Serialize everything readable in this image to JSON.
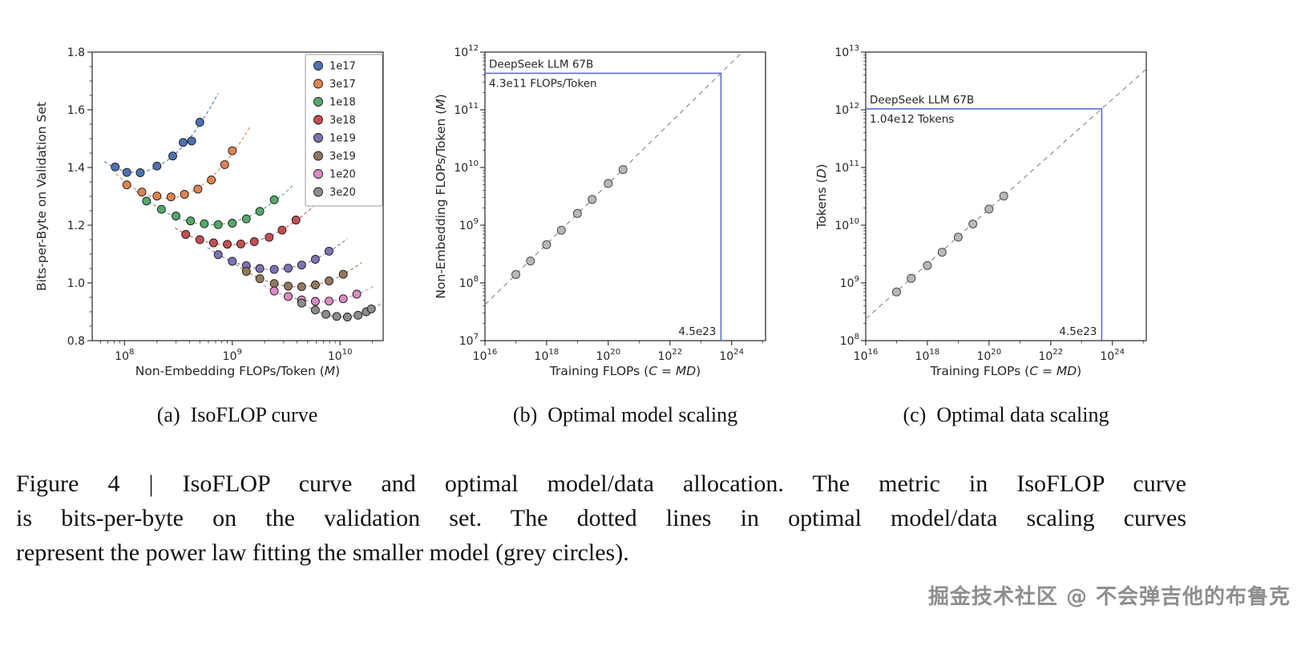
{
  "figure": {
    "subcaptions": [
      {
        "tag": "(a)",
        "text": "IsoFLOP curve"
      },
      {
        "tag": "(b)",
        "text": "Optimal model scaling"
      },
      {
        "tag": "(c)",
        "text": "Optimal data scaling"
      }
    ],
    "caption_lines": [
      "Figure 4 | IsoFLOP curve and optimal model/data allocation. The metric in IsoFLOP curve",
      "is bits-per-byte on the validation set. The dotted lines in optimal model/data scaling curves",
      "represent the power law fitting the smaller model (grey circles)."
    ],
    "watermark": "掘金技术社区 @ 不会弹吉他的布鲁克"
  },
  "style": {
    "accent_blue": "#5b6fce",
    "point_gray": "#b8b8b8",
    "point_gray_edge": "#4a4a4a",
    "fit_gray": "#8f8f8f",
    "spine": "#262626"
  },
  "chart_data": [
    {
      "panel": "a",
      "type": "scatter",
      "title": "IsoFLOP curve",
      "xlabel": "Non-Embedding FLOPs/Token (M)",
      "ylabel": "Bits-per-Byte on Validation Set",
      "xscale": "log",
      "yscale": "linear",
      "xlim_log": [
        7.7,
        10.4
      ],
      "ylim": [
        0.8,
        1.8
      ],
      "xticks": [
        100000000.0,
        1000000000.0,
        10000000000.0
      ],
      "yticks": [
        0.8,
        1.0,
        1.2,
        1.4,
        1.6,
        1.8
      ],
      "legend_position": "upper right",
      "series": [
        {
          "name": "1e17",
          "color": "#4C72B0",
          "points": [
            [
              82000000.0,
              1.402
            ],
            [
              105000000.0,
              1.383
            ],
            [
              140000000.0,
              1.382
            ],
            [
              200000000.0,
              1.405
            ],
            [
              280000000.0,
              1.44
            ],
            [
              350000000.0,
              1.487
            ],
            [
              420000000.0,
              1.492
            ],
            [
              500000000.0,
              1.557
            ]
          ]
        },
        {
          "name": "3e17",
          "color": "#DD8452",
          "points": [
            [
              105000000.0,
              1.34
            ],
            [
              145000000.0,
              1.315
            ],
            [
              200000000.0,
              1.301
            ],
            [
              270000000.0,
              1.298
            ],
            [
              360000000.0,
              1.307
            ],
            [
              480000000.0,
              1.325
            ],
            [
              640000000.0,
              1.357
            ],
            [
              850000000.0,
              1.41
            ],
            [
              1000000000.0,
              1.458
            ]
          ]
        },
        {
          "name": "1e18",
          "color": "#55A868",
          "points": [
            [
              160000000.0,
              1.284
            ],
            [
              220000000.0,
              1.255
            ],
            [
              300000000.0,
              1.232
            ],
            [
              410000000.0,
              1.215
            ],
            [
              550000000.0,
              1.205
            ],
            [
              740000000.0,
              1.202
            ],
            [
              1000000000.0,
              1.207
            ],
            [
              1350000000.0,
              1.222
            ],
            [
              1800000000.0,
              1.248
            ],
            [
              2450000000.0,
              1.288
            ]
          ]
        },
        {
          "name": "3e18",
          "color": "#C44E52",
          "points": [
            [
              370000000.0,
              1.168
            ],
            [
              500000000.0,
              1.15
            ],
            [
              670000000.0,
              1.139
            ],
            [
              900000000.0,
              1.134
            ],
            [
              1200000000.0,
              1.135
            ],
            [
              1600000000.0,
              1.143
            ],
            [
              2200000000.0,
              1.158
            ],
            [
              2900000000.0,
              1.183
            ],
            [
              3900000000.0,
              1.218
            ]
          ]
        },
        {
          "name": "1e19",
          "color": "#8172B3",
          "points": [
            [
              740000000.0,
              1.098
            ],
            [
              1000000000.0,
              1.075
            ],
            [
              1350000000.0,
              1.06
            ],
            [
              1800000000.0,
              1.05
            ],
            [
              2450000000.0,
              1.047
            ],
            [
              3300000000.0,
              1.051
            ],
            [
              4400000000.0,
              1.062
            ],
            [
              5900000000.0,
              1.082
            ],
            [
              7900000000.0,
              1.11
            ]
          ]
        },
        {
          "name": "3e19",
          "color": "#937860",
          "points": [
            [
              1350000000.0,
              1.04
            ],
            [
              1800000000.0,
              1.015
            ],
            [
              2450000000.0,
              0.998
            ],
            [
              3300000000.0,
              0.989
            ],
            [
              4400000000.0,
              0.987
            ],
            [
              5900000000.0,
              0.993
            ],
            [
              7900000000.0,
              1.007
            ],
            [
              10700000000.0,
              1.03
            ]
          ]
        },
        {
          "name": "1e20",
          "color": "#DA8BC3",
          "points": [
            [
              2450000000.0,
              0.972
            ],
            [
              3300000000.0,
              0.953
            ],
            [
              4400000000.0,
              0.941
            ],
            [
              5900000000.0,
              0.936
            ],
            [
              7900000000.0,
              0.937
            ],
            [
              10700000000.0,
              0.945
            ],
            [
              14300000000.0,
              0.961
            ]
          ]
        },
        {
          "name": "3e20",
          "color": "#8C8C8C",
          "points": [
            [
              4400000000.0,
              0.93
            ],
            [
              5900000000.0,
              0.906
            ],
            [
              7400000000.0,
              0.891
            ],
            [
              9300000000.0,
              0.884
            ],
            [
              11700000000.0,
              0.882
            ],
            [
              14700000000.0,
              0.888
            ],
            [
              17500000000.0,
              0.9
            ],
            [
              19500000000.0,
              0.91
            ]
          ]
        }
      ]
    },
    {
      "panel": "b",
      "type": "scatter",
      "title": "Optimal model scaling",
      "xlabel": "Training FLOPs (C = MD)",
      "ylabel": "Non-Embedding FLOPs/Token (M)",
      "xscale": "log",
      "yscale": "log",
      "xlim_log": [
        16,
        25.1
      ],
      "ylim_log": [
        7,
        12
      ],
      "xticks_log": [
        16,
        18,
        20,
        22,
        24
      ],
      "yticks_log": [
        7,
        8,
        9,
        10,
        11,
        12
      ],
      "points": [
        [
          1e+17,
          140000000.0
        ],
        [
          3e+17,
          240000000.0
        ],
        [
          1e+18,
          460000000.0
        ],
        [
          3e+18,
          820000000.0
        ],
        [
          1e+19,
          1600000000.0
        ],
        [
          3e+19,
          2800000000.0
        ],
        [
          1e+20,
          5300000000.0
        ],
        [
          3e+20,
          9200000000.0
        ]
      ],
      "fit_line": {
        "slope": 0.5243,
        "intercept_log10": -0.7657,
        "style": "dashed"
      },
      "annotation": {
        "name": "DeepSeek LLM 67B",
        "value_label": "4.3e11 FLOPs/Token",
        "x": 4.5e+23,
        "y": 430000000000.0,
        "x_label": "4.5e23"
      }
    },
    {
      "panel": "c",
      "type": "scatter",
      "title": "Optimal data scaling",
      "xlabel": "Training FLOPs (C = MD)",
      "ylabel": "Tokens (D)",
      "xscale": "log",
      "yscale": "log",
      "xlim_log": [
        16,
        25.1
      ],
      "ylim_log": [
        8,
        13
      ],
      "xticks_log": [
        16,
        18,
        20,
        22,
        24
      ],
      "yticks_log": [
        8,
        9,
        10,
        11,
        12,
        13
      ],
      "points": [
        [
          1e+17,
          700000000.0
        ],
        [
          3e+17,
          1200000000.0
        ],
        [
          1e+18,
          2000000000.0
        ],
        [
          3e+18,
          3400000000.0
        ],
        [
          1e+19,
          6200000000.0
        ],
        [
          3e+19,
          10500000000.0
        ],
        [
          1e+20,
          19000000000.0
        ],
        [
          3e+20,
          32000000000.0
        ]
      ],
      "fit_line": {
        "slope": 0.4757,
        "intercept_log10": 0.7659,
        "style": "dashed"
      },
      "annotation": {
        "name": "DeepSeek LLM 67B",
        "value_label": "1.04e12 Tokens",
        "x": 4.5e+23,
        "y": 1040000000000.0,
        "x_label": "4.5e23"
      }
    }
  ]
}
